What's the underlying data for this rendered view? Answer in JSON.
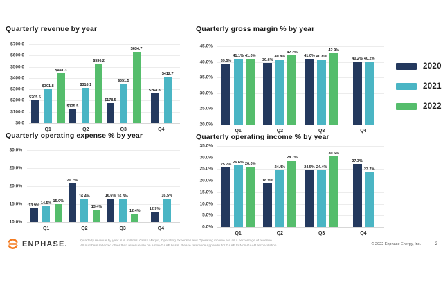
{
  "slide": {
    "logo_text": "ENPHASE.",
    "footnote_line1": "Quarterly revenue by year is in millions; Gross Margin, Operating Expenses and Operating income are as a percentage of revenue",
    "footnote_line2": "All numbers reflected other than revenue are on a non-GAAP basis.  Please reference Appendix for GAAP to Non-GAAP reconciliation",
    "copyright": "© 2022 Enphase Energy, Inc.",
    "page_number": "2",
    "logo_color": "#F47B20"
  },
  "legend": {
    "items": [
      {
        "label": "2020",
        "color": "#24395E"
      },
      {
        "label": "2021",
        "color": "#4AB5C4"
      },
      {
        "label": "2022",
        "color": "#55BD6C"
      }
    ]
  },
  "chart_data": [
    {
      "id": "quarterly-revenue",
      "type": "bar",
      "title": "Quarterly revenue by year",
      "categories": [
        "Q1",
        "Q2",
        "Q3",
        "Q4"
      ],
      "series": [
        {
          "name": "2020",
          "values": [
            205.5,
            125.5,
            178.5,
            264.8
          ]
        },
        {
          "name": "2021",
          "values": [
            301.8,
            316.1,
            351.5,
            412.7
          ]
        },
        {
          "name": "2022",
          "values": [
            441.3,
            530.2,
            634.7,
            null
          ]
        }
      ],
      "ylim": [
        0,
        700
      ],
      "ytick_step": 100,
      "tick_prefix": "$",
      "tick_suffix": "",
      "value_prefix": "$",
      "value_suffix": "",
      "decimals": 1,
      "grid": true,
      "xlabel": "",
      "ylabel": "",
      "legend_position": "right"
    },
    {
      "id": "quarterly-gross-margin",
      "type": "bar",
      "title": "Quarterly gross margin % by year",
      "categories": [
        "Q1",
        "Q2",
        "Q3",
        "Q4"
      ],
      "series": [
        {
          "name": "2020",
          "values": [
            39.5,
            39.6,
            41.0,
            40.2
          ]
        },
        {
          "name": "2021",
          "values": [
            41.1,
            40.8,
            40.8,
            40.2
          ]
        },
        {
          "name": "2022",
          "values": [
            41.0,
            42.2,
            42.9,
            null
          ]
        }
      ],
      "ylim": [
        20,
        45
      ],
      "ytick_step": 5,
      "tick_prefix": "",
      "tick_suffix": "%",
      "value_prefix": "",
      "value_suffix": "%",
      "decimals": 1,
      "grid": true,
      "xlabel": "",
      "ylabel": "",
      "legend_position": "right"
    },
    {
      "id": "quarterly-operating-expense",
      "type": "bar",
      "title": "Quarterly operating expense % by year",
      "categories": [
        "Q1",
        "Q2",
        "Q3",
        "Q4"
      ],
      "series": [
        {
          "name": "2020",
          "values": [
            13.9,
            20.7,
            16.6,
            12.9
          ]
        },
        {
          "name": "2021",
          "values": [
            14.5,
            16.4,
            16.3,
            16.5
          ]
        },
        {
          "name": "2022",
          "values": [
            15.0,
            13.4,
            12.4,
            null
          ]
        }
      ],
      "ylim": [
        10,
        30
      ],
      "ytick_step": 5,
      "tick_prefix": "",
      "tick_suffix": "%",
      "value_prefix": "",
      "value_suffix": "%",
      "decimals": 1,
      "grid": true,
      "xlabel": "",
      "ylabel": "",
      "legend_position": "right"
    },
    {
      "id": "quarterly-operating-income",
      "type": "bar",
      "title": "Quarterly operating income % by year",
      "categories": [
        "Q1",
        "Q2",
        "Q3",
        "Q4"
      ],
      "series": [
        {
          "name": "2020",
          "values": [
            25.7,
            18.9,
            24.5,
            27.3
          ]
        },
        {
          "name": "2021",
          "values": [
            26.6,
            24.4,
            24.4,
            23.7
          ]
        },
        {
          "name": "2022",
          "values": [
            26.0,
            28.7,
            30.6,
            null
          ]
        }
      ],
      "ylim": [
        0,
        35
      ],
      "ytick_step": 5,
      "tick_prefix": "",
      "tick_suffix": "%",
      "value_prefix": "",
      "value_suffix": "%",
      "decimals": 1,
      "grid": true,
      "xlabel": "",
      "ylabel": "",
      "legend_position": "right"
    }
  ]
}
